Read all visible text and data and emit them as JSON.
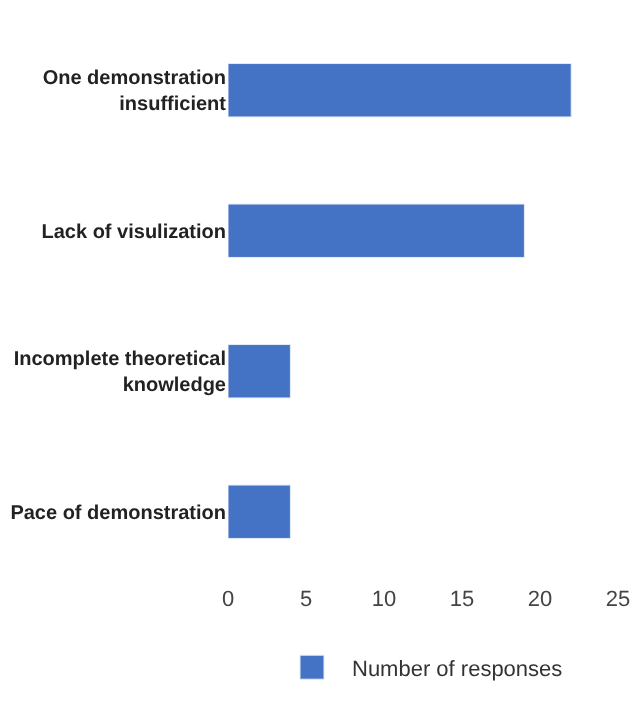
{
  "chart_data": {
    "type": "bar",
    "orientation": "horizontal",
    "categories": [
      "One demonstration insufficient",
      "Lack of visulization",
      "Incomplete theoretical knowledge",
      "Pace of demonstration"
    ],
    "series": [
      {
        "name": "Number of responses",
        "color": "#4472c4",
        "values": [
          22,
          19,
          4,
          4
        ]
      }
    ],
    "xlim": [
      0,
      25
    ],
    "xticks": [
      0,
      5,
      10,
      15,
      20,
      25
    ],
    "legend": "bottom"
  }
}
